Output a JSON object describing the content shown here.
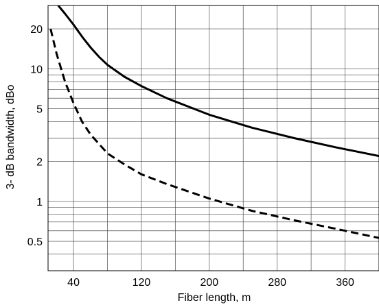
{
  "chart_data": {
    "type": "line",
    "xlabel": "Fiber length, m",
    "ylabel": "3- dB bandwidth, dBo",
    "xlim": [
      10,
      400
    ],
    "ylim": [
      0.3,
      30
    ],
    "yscale": "log",
    "x_ticks": [
      40,
      120,
      200,
      280,
      360
    ],
    "x_tick_labels": [
      "40",
      "120",
      "200",
      "280",
      "360"
    ],
    "y_ticks": [
      20,
      10,
      5,
      2,
      1,
      0.5
    ],
    "y_tick_labels": [
      "20",
      "10",
      "5",
      "2",
      "1",
      "0.5"
    ],
    "grid": true,
    "series": [
      {
        "style": "solid",
        "x": [
          22,
          30,
          40,
          50,
          60,
          70,
          80,
          100,
          120,
          150,
          200,
          250,
          300,
          350,
          400
        ],
        "y": [
          30,
          26,
          21.5,
          17.5,
          14.5,
          12.3,
          10.7,
          8.7,
          7.4,
          6.0,
          4.5,
          3.6,
          3.0,
          2.55,
          2.2
        ]
      },
      {
        "style": "dashed",
        "x": [
          13,
          20,
          30,
          40,
          50,
          60,
          80,
          100,
          120,
          150,
          200,
          250,
          300,
          350,
          400
        ],
        "y": [
          20,
          13,
          8,
          5.5,
          4.0,
          3.2,
          2.3,
          1.9,
          1.6,
          1.35,
          1.05,
          0.85,
          0.72,
          0.62,
          0.53
        ]
      }
    ]
  }
}
